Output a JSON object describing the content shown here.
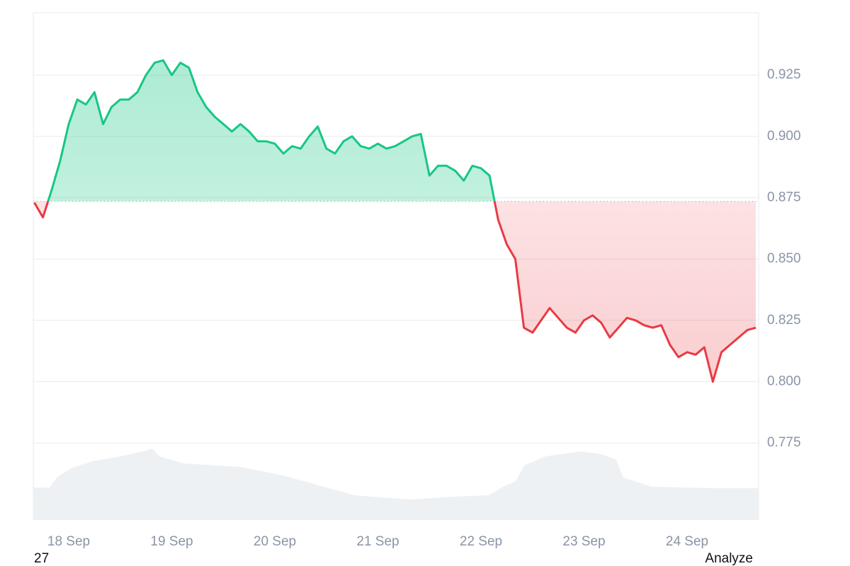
{
  "chart_data": {
    "type": "line",
    "categories": [
      null,
      null,
      null,
      null,
      "18 Sep",
      null,
      null,
      null,
      null,
      null,
      null,
      null,
      null,
      null,
      null,
      null,
      "19 Sep",
      null,
      null,
      null,
      null,
      null,
      null,
      null,
      null,
      null,
      null,
      null,
      "20 Sep",
      null,
      null,
      null,
      null,
      null,
      null,
      null,
      null,
      null,
      null,
      null,
      "21 Sep",
      null,
      null,
      null,
      null,
      null,
      null,
      null,
      null,
      null,
      null,
      null,
      "22 Sep",
      null,
      null,
      null,
      null,
      null,
      null,
      null,
      null,
      null,
      null,
      null,
      "23 Sep",
      null,
      null,
      null,
      null,
      null,
      null,
      null,
      null,
      null,
      null,
      null,
      "24 Sep",
      null,
      null,
      null,
      null,
      null,
      null,
      null,
      null
    ],
    "values": [
      0.873,
      0.867,
      0.878,
      0.89,
      0.905,
      0.915,
      0.913,
      0.918,
      0.905,
      0.912,
      0.915,
      0.915,
      0.918,
      0.925,
      0.93,
      0.931,
      0.925,
      0.93,
      0.928,
      0.918,
      0.912,
      0.908,
      0.905,
      0.902,
      0.905,
      0.902,
      0.898,
      0.898,
      0.897,
      0.893,
      0.896,
      0.895,
      0.9,
      0.904,
      0.895,
      0.893,
      0.898,
      0.9,
      0.896,
      0.895,
      0.897,
      0.895,
      0.896,
      0.898,
      0.9,
      0.901,
      0.884,
      0.888,
      0.888,
      0.886,
      0.882,
      0.888,
      0.887,
      0.884,
      0.866,
      0.856,
      0.85,
      0.822,
      0.82,
      0.825,
      0.83,
      0.826,
      0.822,
      0.82,
      0.825,
      0.827,
      0.824,
      0.818,
      0.822,
      0.826,
      0.825,
      0.823,
      0.822,
      0.823,
      0.815,
      0.81,
      0.812,
      0.811,
      0.814,
      0.8,
      0.812,
      0.815,
      0.818,
      0.821,
      0.822
    ],
    "baseline": 0.8735,
    "up_color": "#16c784",
    "down_color": "#ea3943",
    "ylim": [
      0.7436,
      0.9504
    ],
    "yticks": [
      0.775,
      {
        "value": 0.8,
        "label": "0.800"
      },
      0.825,
      {
        "value": 0.85,
        "label": "0.850"
      },
      0.875,
      {
        "value": 0.9,
        "label": "0.900"
      },
      0.925
    ],
    "grid": true,
    "footer_left": "27",
    "footer_right": "Analyze"
  }
}
